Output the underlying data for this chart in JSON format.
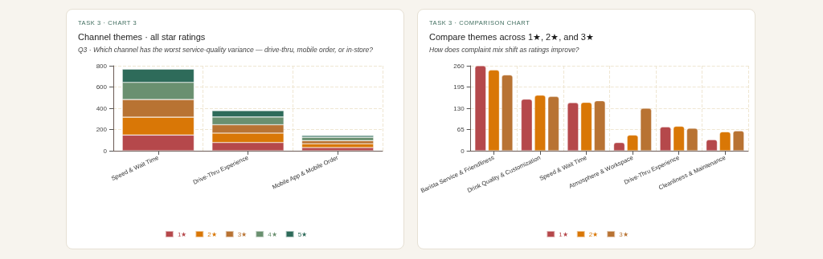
{
  "chart_data": [
    {
      "type": "bar",
      "title": "Channel themes · all star ratings",
      "subtitle": "Q3 · Which channel has the worst service-quality variance — drive-thru, mobile order, or in-store?",
      "annotations": [
        "TASK 3 · CHART 3"
      ],
      "categories": [
        "Speed & Wait Time",
        "Drive-Thru Experience",
        "Mobile App & Mobile Order"
      ],
      "series": [
        {
          "name": "1★",
          "color": "#b5484b",
          "values": [
            148,
            77,
            30
          ]
        },
        {
          "name": "2★",
          "color": "#d97706",
          "values": [
            168,
            89,
            36
          ]
        },
        {
          "name": "3★",
          "color": "#b87333",
          "values": [
            166,
            79,
            29
          ]
        },
        {
          "name": "4★",
          "color": "#6a9070",
          "values": [
            161,
            73,
            32
          ]
        },
        {
          "name": "5★",
          "color": "#2e6b5a",
          "values": [
            125,
            59,
            16
          ]
        }
      ],
      "stacked": true,
      "ylim": [
        0,
        800
      ],
      "yticks": [
        0,
        200,
        400,
        600,
        800
      ],
      "grid": true,
      "legend": "bottom"
    },
    {
      "type": "bar",
      "title": "Compare themes across 1★, 2★, and 3★",
      "subtitle": "How does complaint mix shift as ratings improve?",
      "annotations": [
        "TASK 3 · COMPARISON CHART"
      ],
      "categories": [
        "Barista Service & Friendliness",
        "Drink Quality & Customization",
        "Speed & Wait Time",
        "Atmosphere & Workspace",
        "Drive-Thru Experience",
        "Cleanliness & Maintenance"
      ],
      "series": [
        {
          "name": "1★",
          "color": "#b5484b",
          "values": [
            260,
            158,
            147,
            25,
            73,
            34
          ]
        },
        {
          "name": "2★",
          "color": "#d97706",
          "values": [
            247,
            170,
            148,
            48,
            75,
            58
          ]
        },
        {
          "name": "3★",
          "color": "#b87333",
          "values": [
            232,
            166,
            153,
            130,
            69,
            61
          ]
        }
      ],
      "ylim": [
        0,
        260
      ],
      "yticks": [
        0,
        65,
        130,
        195,
        260
      ],
      "grid": true,
      "legend": "bottom"
    }
  ]
}
